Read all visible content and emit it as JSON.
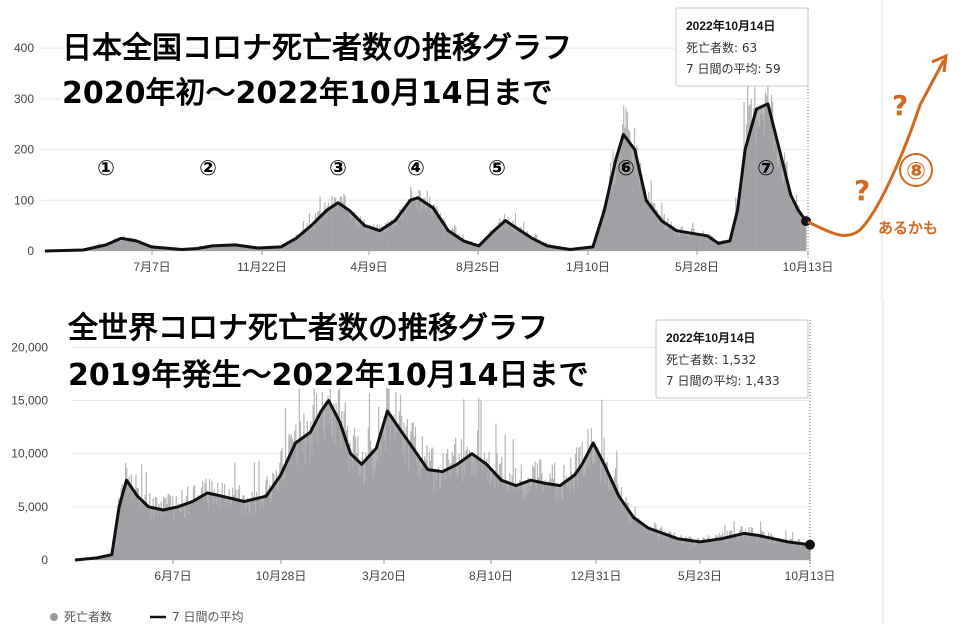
{
  "colors": {
    "bars": "#b5b5b8",
    "area": "#9a9a9e",
    "line": "#111111",
    "orange": "#d2691e"
  },
  "top_chart": {
    "title_line1": "日本全国コロナ死亡者数の推移グラフ",
    "title_line2": "2020年初～2022年10月14日まで",
    "tooltip": {
      "date": "2022年10月14日",
      "deaths_label": "死亡者数: 63",
      "avg_label": "7 日間の平均: 59"
    },
    "wave_labels": [
      "①",
      "②",
      "③",
      "④",
      "⑤",
      "⑥",
      "⑦"
    ],
    "forecast_label": "⑧",
    "forecast_text": "あるかも",
    "question_mark": "?"
  },
  "bottom_chart": {
    "title_line1": "全世界コロナ死亡者数の推移グラフ",
    "title_line2": "2019年発生～2022年10月14日まで",
    "tooltip": {
      "date": "2022年10月14日",
      "deaths_label": "死亡者数: 1,532",
      "avg_label": "7 日間の平均: 1,433"
    }
  },
  "legend": {
    "bars_label": "死亡者数",
    "line_label": "7 日間の平均"
  },
  "chart_data": [
    {
      "type": "area",
      "title": "日本全国コロナ死亡者数の推移グラフ",
      "subtitle": "2020年初～2022年10月14日まで",
      "xlabel": "",
      "ylabel": "",
      "x_ticks": [
        "7月7日",
        "11月22日",
        "4月9日",
        "8月25日",
        "1月10日",
        "5月28日",
        "10月13日"
      ],
      "y_ticks": [
        0,
        100,
        200,
        300,
        400
      ],
      "ylim": [
        0,
        420
      ],
      "grid": true,
      "series": [
        {
          "name": "7 日間の平均",
          "style": "line",
          "points": [
            [
              0,
              0
            ],
            [
              0.05,
              2
            ],
            [
              0.08,
              12
            ],
            [
              0.1,
              25
            ],
            [
              0.12,
              20
            ],
            [
              0.14,
              8
            ],
            [
              0.18,
              3
            ],
            [
              0.2,
              5
            ],
            [
              0.22,
              10
            ],
            [
              0.25,
              12
            ],
            [
              0.28,
              6
            ],
            [
              0.31,
              8
            ],
            [
              0.33,
              25
            ],
            [
              0.35,
              50
            ],
            [
              0.37,
              80
            ],
            [
              0.385,
              95
            ],
            [
              0.4,
              80
            ],
            [
              0.42,
              50
            ],
            [
              0.44,
              40
            ],
            [
              0.46,
              60
            ],
            [
              0.48,
              100
            ],
            [
              0.49,
              105
            ],
            [
              0.51,
              85
            ],
            [
              0.53,
              40
            ],
            [
              0.55,
              20
            ],
            [
              0.57,
              10
            ],
            [
              0.59,
              40
            ],
            [
              0.605,
              60
            ],
            [
              0.62,
              45
            ],
            [
              0.64,
              25
            ],
            [
              0.66,
              10
            ],
            [
              0.69,
              3
            ],
            [
              0.72,
              8
            ],
            [
              0.735,
              80
            ],
            [
              0.75,
              180
            ],
            [
              0.76,
              230
            ],
            [
              0.775,
              200
            ],
            [
              0.79,
              100
            ],
            [
              0.81,
              60
            ],
            [
              0.83,
              40
            ],
            [
              0.85,
              35
            ],
            [
              0.87,
              30
            ],
            [
              0.885,
              15
            ],
            [
              0.9,
              20
            ],
            [
              0.91,
              80
            ],
            [
              0.92,
              200
            ],
            [
              0.935,
              280
            ],
            [
              0.95,
              290
            ],
            [
              0.965,
              200
            ],
            [
              0.98,
              110
            ],
            [
              0.99,
              80
            ],
            [
              1,
              59
            ]
          ]
        },
        {
          "name": "死亡者数",
          "style": "bars",
          "last_value": 63
        }
      ]
    },
    {
      "type": "area",
      "title": "全世界コロナ死亡者数の推移グラフ",
      "subtitle": "2019年発生～2022年10月14日まで",
      "xlabel": "",
      "ylabel": "",
      "x_ticks": [
        "6月7日",
        "10月28日",
        "3月20日",
        "8月10日",
        "12月31日",
        "5月23日",
        "10月13日"
      ],
      "y_ticks": [
        0,
        5000,
        10000,
        15000,
        20000
      ],
      "ylim": [
        0,
        20500
      ],
      "grid": true,
      "series": [
        {
          "name": "7 日間の平均",
          "style": "line",
          "points": [
            [
              0,
              0
            ],
            [
              0.03,
              200
            ],
            [
              0.05,
              500
            ],
            [
              0.06,
              5000
            ],
            [
              0.07,
              7500
            ],
            [
              0.085,
              6000
            ],
            [
              0.1,
              5000
            ],
            [
              0.12,
              4700
            ],
            [
              0.14,
              5000
            ],
            [
              0.16,
              5500
            ],
            [
              0.18,
              6300
            ],
            [
              0.2,
              6000
            ],
            [
              0.23,
              5500
            ],
            [
              0.26,
              6000
            ],
            [
              0.28,
              8000
            ],
            [
              0.3,
              11000
            ],
            [
              0.32,
              12000
            ],
            [
              0.335,
              14000
            ],
            [
              0.345,
              15000
            ],
            [
              0.36,
              13000
            ],
            [
              0.375,
              10000
            ],
            [
              0.39,
              9000
            ],
            [
              0.41,
              10500
            ],
            [
              0.425,
              14000
            ],
            [
              0.44,
              12500
            ],
            [
              0.46,
              10500
            ],
            [
              0.48,
              8500
            ],
            [
              0.5,
              8300
            ],
            [
              0.52,
              9000
            ],
            [
              0.54,
              10000
            ],
            [
              0.56,
              9000
            ],
            [
              0.58,
              7500
            ],
            [
              0.6,
              7000
            ],
            [
              0.62,
              7500
            ],
            [
              0.64,
              7200
            ],
            [
              0.66,
              7000
            ],
            [
              0.68,
              8000
            ],
            [
              0.69,
              9000
            ],
            [
              0.705,
              11000
            ],
            [
              0.72,
              9000
            ],
            [
              0.74,
              6000
            ],
            [
              0.76,
              4000
            ],
            [
              0.78,
              3000
            ],
            [
              0.8,
              2500
            ],
            [
              0.82,
              2000
            ],
            [
              0.85,
              1700
            ],
            [
              0.88,
              2000
            ],
            [
              0.91,
              2500
            ],
            [
              0.93,
              2300
            ],
            [
              0.95,
              2000
            ],
            [
              0.97,
              1700
            ],
            [
              1,
              1433
            ]
          ]
        },
        {
          "name": "死亡者数",
          "style": "bars",
          "last_value": 1532
        }
      ]
    }
  ]
}
